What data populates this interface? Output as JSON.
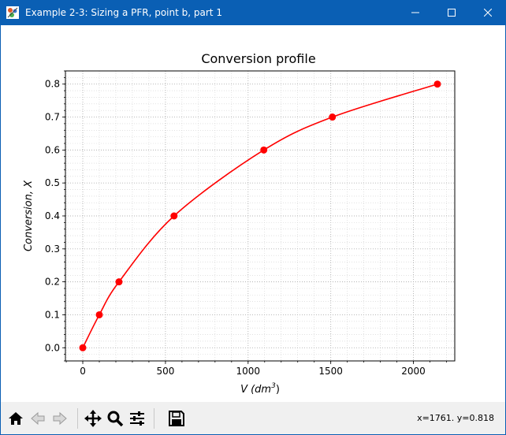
{
  "window": {
    "title": "Example 2-3: Sizing a PFR, point b, part 1",
    "title_bar_color": "#0a5fb4",
    "controls": [
      "minimize-icon",
      "maximize-icon",
      "close-icon"
    ]
  },
  "toolbar": {
    "buttons": [
      "home-icon",
      "back-arrow-icon",
      "forward-arrow-icon",
      "pan-icon",
      "zoom-icon",
      "configure-subplots-icon",
      "save-icon"
    ],
    "coords_readout": "x=1761. y=0.818"
  },
  "chart_data": {
    "type": "line",
    "title": "Conversion profile",
    "xlabel_prefix": "V (dm",
    "xlabel_sup": "3",
    "xlabel_suffix": ")",
    "ylabel": "Conversion, X",
    "x": [
      0,
      100,
      219,
      552,
      1095,
      1510,
      2145
    ],
    "y": [
      0.0,
      0.1,
      0.2,
      0.4,
      0.6,
      0.7,
      0.8
    ],
    "xlim": [
      -105,
      2250
    ],
    "ylim": [
      -0.04,
      0.84
    ],
    "xticks": [
      0,
      500,
      1000,
      1500,
      2000
    ],
    "xtick_labels": [
      "0",
      "500",
      "1000",
      "1500",
      "2000"
    ],
    "yticks": [
      0.0,
      0.1,
      0.2,
      0.3,
      0.4,
      0.5,
      0.6,
      0.7,
      0.8
    ],
    "ytick_labels": [
      "0.0",
      "0.1",
      "0.2",
      "0.3",
      "0.4",
      "0.5",
      "0.6",
      "0.7",
      "0.8"
    ],
    "grid": "major and minor, dotted",
    "series_color": "#ff0000",
    "marker": "circle"
  }
}
